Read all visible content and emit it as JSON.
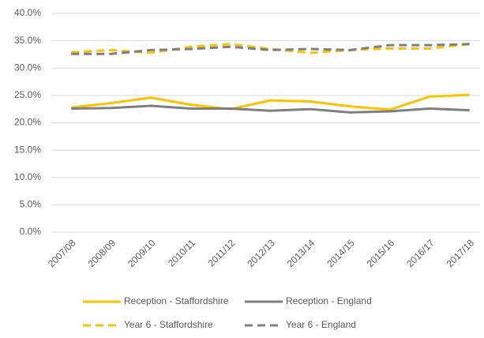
{
  "chart_data": {
    "type": "line",
    "categories": [
      "2007/08",
      "2008/09",
      "2009/10",
      "2010/11",
      "2011/12",
      "2012/13",
      "2013/14",
      "2014/15",
      "2015/16",
      "2016/17",
      "2017/18"
    ],
    "series": [
      {
        "name": "Reception - Staffordshire",
        "color": "#FFC000",
        "dashed": false,
        "values": [
          22.8,
          23.6,
          24.6,
          23.3,
          22.5,
          24.1,
          23.9,
          23.0,
          22.4,
          24.8,
          25.1
        ]
      },
      {
        "name": "Reception - England",
        "color": "#7F7F7F",
        "dashed": false,
        "values": [
          22.6,
          22.7,
          23.1,
          22.6,
          22.6,
          22.2,
          22.5,
          21.9,
          22.1,
          22.6,
          22.3
        ]
      },
      {
        "name": "Year 6 - Staffordshire",
        "color": "#FFC000",
        "dashed": true,
        "values": [
          32.9,
          33.3,
          32.8,
          33.9,
          34.4,
          33.5,
          32.8,
          33.3,
          33.6,
          33.6,
          34.4
        ]
      },
      {
        "name": "Year 6 - England",
        "color": "#7F7F7F",
        "dashed": true,
        "values": [
          32.6,
          32.6,
          33.3,
          33.5,
          33.9,
          33.3,
          33.5,
          33.3,
          34.2,
          34.2,
          34.4
        ]
      }
    ],
    "ylim": [
      0,
      40
    ],
    "yticks": [
      {
        "value": 0,
        "label": "0.0%"
      },
      {
        "value": 5,
        "label": "5.0%"
      },
      {
        "value": 10,
        "label": "10.0%"
      },
      {
        "value": 15,
        "label": "15.0%"
      },
      {
        "value": 20,
        "label": "20.0%"
      },
      {
        "value": 25,
        "label": "25.0%"
      },
      {
        "value": 30,
        "label": "30.0%"
      },
      {
        "value": 35,
        "label": "35.0%"
      },
      {
        "value": 40,
        "label": "40.0%"
      }
    ],
    "grid": true,
    "legend": "bottom"
  }
}
